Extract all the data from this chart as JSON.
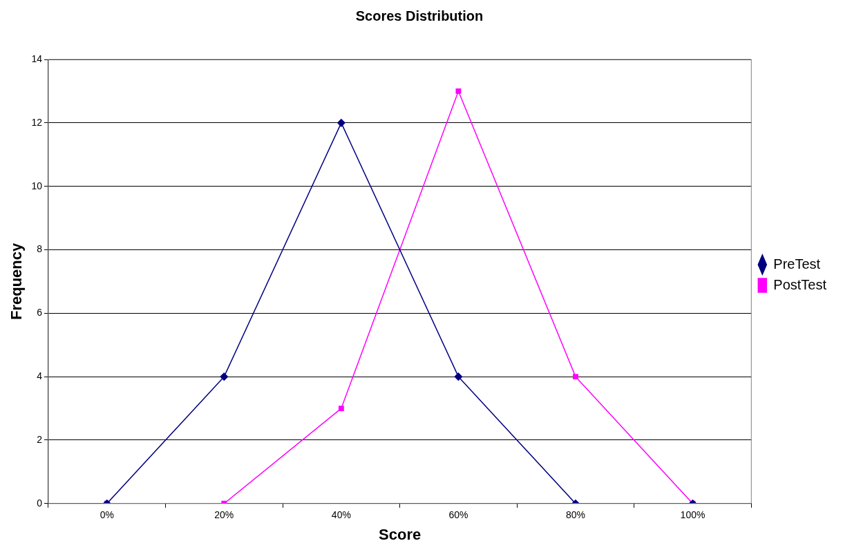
{
  "chart_data": {
    "type": "line",
    "title": "Scores Distribution",
    "xlabel": "Score",
    "ylabel": "Frequency",
    "categories": [
      "0%",
      "20%",
      "40%",
      "60%",
      "80%",
      "100%"
    ],
    "series": [
      {
        "name": "PreTest",
        "color": "#000080",
        "marker": "diamond",
        "values": [
          0,
          4,
          12,
          4,
          0,
          0
        ]
      },
      {
        "name": "PostTest",
        "color": "#ff00ff",
        "marker": "square",
        "values": [
          0,
          0,
          3,
          13,
          4,
          0
        ]
      }
    ],
    "ylim": [
      0,
      14
    ],
    "yticks": [
      0,
      2,
      4,
      6,
      8,
      10,
      12,
      14
    ],
    "grid": "y",
    "legend": "right"
  }
}
